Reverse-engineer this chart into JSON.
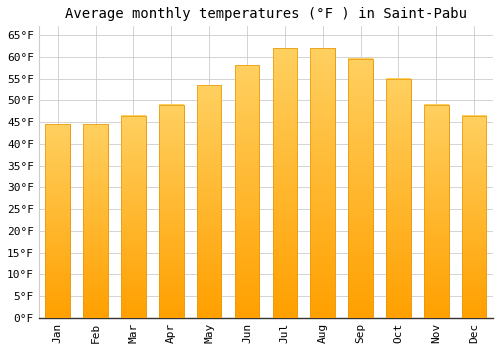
{
  "title": "Average monthly temperatures (°F ) in Saint-Pabu",
  "months": [
    "Jan",
    "Feb",
    "Mar",
    "Apr",
    "May",
    "Jun",
    "Jul",
    "Aug",
    "Sep",
    "Oct",
    "Nov",
    "Dec"
  ],
  "values": [
    44.5,
    44.5,
    46.5,
    49.0,
    53.5,
    58.0,
    62.0,
    62.0,
    59.5,
    55.0,
    49.0,
    46.5
  ],
  "bar_color_top": "#FFD060",
  "bar_color_bottom": "#FFA000",
  "bar_edge_color": "#E8960A",
  "background_color": "#ffffff",
  "grid_color": "#cccccc",
  "ylim": [
    0,
    67
  ],
  "yticks": [
    0,
    5,
    10,
    15,
    20,
    25,
    30,
    35,
    40,
    45,
    50,
    55,
    60,
    65
  ],
  "title_fontsize": 10,
  "tick_fontsize": 8,
  "font_family": "monospace"
}
